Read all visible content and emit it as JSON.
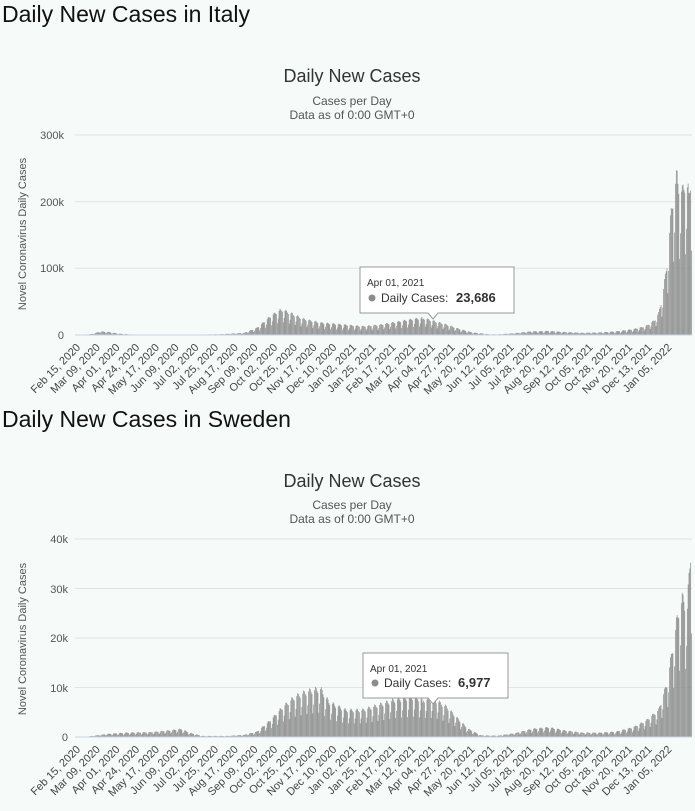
{
  "sections": [
    {
      "id": "italy",
      "heading": "Daily New Cases in Italy",
      "chart_title": "Daily New Cases",
      "subtitle1": "Cases per Day",
      "subtitle2": "Data as of 0:00 GMT+0",
      "ylabel": "Novel Coronavirus Daily Cases",
      "yticks": [
        "0",
        "100k",
        "200k",
        "300k"
      ],
      "ymax": 300000,
      "tooltip": {
        "date": "Apr 01, 2021",
        "label": "Daily Cases:",
        "value": "23,686",
        "raw": 23686,
        "index": 411
      }
    },
    {
      "id": "sweden",
      "heading": "Daily New Cases in Sweden",
      "chart_title": "Daily New Cases",
      "subtitle1": "Cases per Day",
      "subtitle2": "Data as of 0:00 GMT+0",
      "ylabel": "Novel Coronavirus Daily Cases",
      "yticks": [
        "0",
        "10k",
        "20k",
        "30k",
        "40k"
      ],
      "ymax": 40000,
      "tooltip": {
        "date": "Apr 01, 2021",
        "label": "Daily Cases:",
        "value": "6,977",
        "raw": 6977,
        "index": 411
      }
    }
  ],
  "x_tick_labels": [
    "Feb 15, 2020",
    "Mar 09, 2020",
    "Apr 01, 2020",
    "Apr 24, 2020",
    "May 17, 2020",
    "Jun 09, 2020",
    "Jul 02, 2020",
    "Jul 25, 2020",
    "Aug 17, 2020",
    "Sep 09, 2020",
    "Oct 02, 2020",
    "Oct 25, 2020",
    "Nov 17, 2020",
    "Dec 10, 2020",
    "Jan 02, 2021",
    "Jan 25, 2021",
    "Feb 17, 2021",
    "Mar 12, 2021",
    "Apr 04, 2021",
    "Apr 27, 2021",
    "May 20, 2021",
    "Jun 12, 2021",
    "Jul 05, 2021",
    "Jul 28, 2021",
    "Aug 20, 2021",
    "Sep 12, 2021",
    "Oct 05, 2021",
    "Oct 28, 2021",
    "Nov 20, 2021",
    "Dec 13, 2021",
    "Jan 05, 2022"
  ],
  "chart_data": [
    {
      "type": "bar",
      "title": "Daily New Cases",
      "subtitle": "Cases per Day / Data as of 0:00 GMT+0",
      "ylabel": "Novel Coronavirus Daily Cases",
      "ylim": [
        0,
        300000
      ],
      "x_start": "Feb 15, 2020",
      "x_end": "Jan 12, 2022",
      "grid": true,
      "series": [
        {
          "name": "Daily Cases",
          "color": "#8c8c8c"
        }
      ],
      "anchors": [
        [
          0,
          0
        ],
        [
          5,
          0
        ],
        [
          20,
          1500
        ],
        [
          30,
          5000
        ],
        [
          40,
          4000
        ],
        [
          50,
          2000
        ],
        [
          65,
          800
        ],
        [
          90,
          200
        ],
        [
          130,
          250
        ],
        [
          175,
          1200
        ],
        [
          200,
          3000
        ],
        [
          215,
          10000
        ],
        [
          230,
          25000
        ],
        [
          240,
          33000
        ],
        [
          245,
          35000
        ],
        [
          255,
          30000
        ],
        [
          270,
          22000
        ],
        [
          290,
          17000
        ],
        [
          310,
          15000
        ],
        [
          340,
          12000
        ],
        [
          360,
          14000
        ],
        [
          380,
          18000
        ],
        [
          400,
          22000
        ],
        [
          411,
          23686
        ],
        [
          425,
          19000
        ],
        [
          440,
          14000
        ],
        [
          455,
          8000
        ],
        [
          470,
          3500
        ],
        [
          490,
          1000
        ],
        [
          500,
          900
        ],
        [
          520,
          2500
        ],
        [
          540,
          5000
        ],
        [
          560,
          5500
        ],
        [
          580,
          4000
        ],
        [
          600,
          3000
        ],
        [
          620,
          3500
        ],
        [
          640,
          5000
        ],
        [
          660,
          8000
        ],
        [
          675,
          12000
        ],
        [
          685,
          20000
        ],
        [
          690,
          30000
        ],
        [
          695,
          55000
        ],
        [
          700,
          100000
        ],
        [
          705,
          170000
        ],
        [
          708,
          200000
        ],
        [
          712,
          220000
        ],
        [
          718,
          195000
        ],
        [
          722,
          220000
        ],
        [
          726,
          190000
        ],
        [
          729,
          230000
        ]
      ]
    },
    {
      "type": "bar",
      "title": "Daily New Cases",
      "subtitle": "Cases per Day / Data as of 0:00 GMT+0",
      "ylabel": "Novel Coronavirus Daily Cases",
      "ylim": [
        0,
        40000
      ],
      "x_start": "Feb 15, 2020",
      "x_end": "Jan 12, 2022",
      "grid": true,
      "series": [
        {
          "name": "Daily Cases",
          "color": "#8c8c8c"
        }
      ],
      "anchors": [
        [
          0,
          0
        ],
        [
          10,
          0
        ],
        [
          25,
          300
        ],
        [
          40,
          600
        ],
        [
          60,
          800
        ],
        [
          90,
          900
        ],
        [
          110,
          1200
        ],
        [
          125,
          1500
        ],
        [
          135,
          800
        ],
        [
          150,
          200
        ],
        [
          180,
          200
        ],
        [
          200,
          400
        ],
        [
          215,
          1000
        ],
        [
          230,
          3000
        ],
        [
          245,
          5500
        ],
        [
          260,
          7500
        ],
        [
          275,
          8500
        ],
        [
          290,
          9000
        ],
        [
          300,
          6500
        ],
        [
          320,
          5000
        ],
        [
          340,
          5000
        ],
        [
          360,
          6000
        ],
        [
          380,
          7000
        ],
        [
          400,
          7500
        ],
        [
          411,
          6977
        ],
        [
          425,
          7000
        ],
        [
          440,
          5500
        ],
        [
          455,
          3000
        ],
        [
          465,
          1500
        ],
        [
          480,
          300
        ],
        [
          500,
          250
        ],
        [
          520,
          700
        ],
        [
          540,
          1500
        ],
        [
          560,
          1800
        ],
        [
          580,
          1200
        ],
        [
          600,
          800
        ],
        [
          620,
          800
        ],
        [
          640,
          1000
        ],
        [
          660,
          1800
        ],
        [
          675,
          3000
        ],
        [
          690,
          5000
        ],
        [
          700,
          10000
        ],
        [
          708,
          18000
        ],
        [
          714,
          24000
        ],
        [
          720,
          26000
        ],
        [
          724,
          24000
        ],
        [
          729,
          38000
        ]
      ]
    }
  ]
}
